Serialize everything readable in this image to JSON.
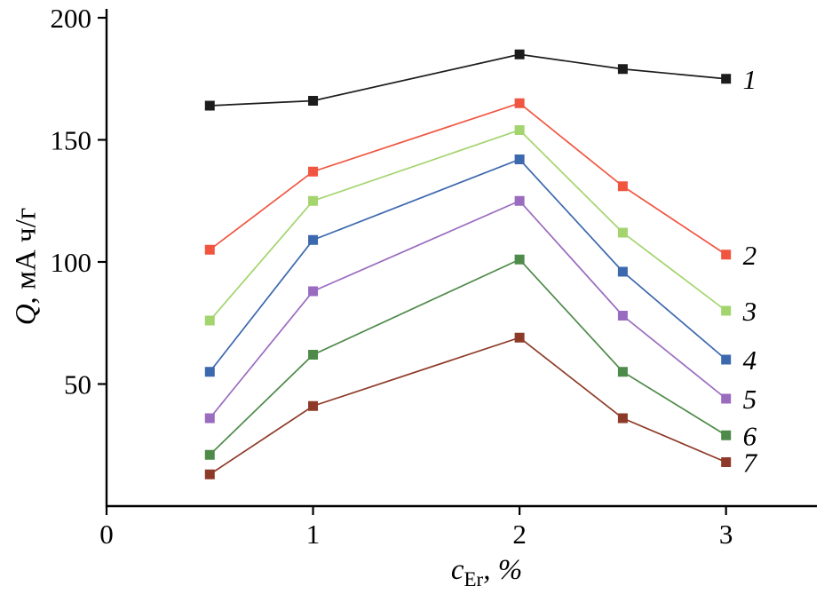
{
  "chart_data": {
    "type": "line",
    "x": [
      0.5,
      1,
      2,
      2.5,
      3
    ],
    "series": [
      {
        "name": "1",
        "color": "#1c1c1c",
        "values": [
          164,
          166,
          185,
          179,
          175
        ]
      },
      {
        "name": "2",
        "color": "#f05540",
        "values": [
          105,
          137,
          165,
          131,
          103
        ]
      },
      {
        "name": "3",
        "color": "#a3d46e",
        "values": [
          76,
          125,
          154,
          112,
          80
        ]
      },
      {
        "name": "4",
        "color": "#3c68ae",
        "values": [
          55,
          109,
          142,
          96,
          60
        ]
      },
      {
        "name": "5",
        "color": "#9a6cc0",
        "values": [
          36,
          88,
          125,
          78,
          44
        ]
      },
      {
        "name": "6",
        "color": "#4e8a4a",
        "values": [
          21,
          62,
          101,
          55,
          29
        ]
      },
      {
        "name": "7",
        "color": "#8e3a28",
        "values": [
          13,
          41,
          69,
          36,
          18
        ]
      }
    ],
    "title": "",
    "xlabel": {
      "var": "c",
      "sub": "Er",
      "suffix": ", %"
    },
    "ylabel": {
      "var": "Q",
      "suffix": ", мА ч/г"
    },
    "xticks": [
      "0",
      "1",
      "2",
      "3"
    ],
    "xtick_values": [
      0,
      1,
      2,
      3
    ],
    "yticks": [
      "50",
      "100",
      "150",
      "200"
    ],
    "ytick_values": [
      50,
      100,
      150,
      200
    ],
    "xlim": [
      0,
      3.44
    ],
    "ylim": [
      0,
      200
    ],
    "grid": false,
    "legend": "inline-right",
    "axis_color": "#000000",
    "marker": "square",
    "marker_size": 11
  }
}
